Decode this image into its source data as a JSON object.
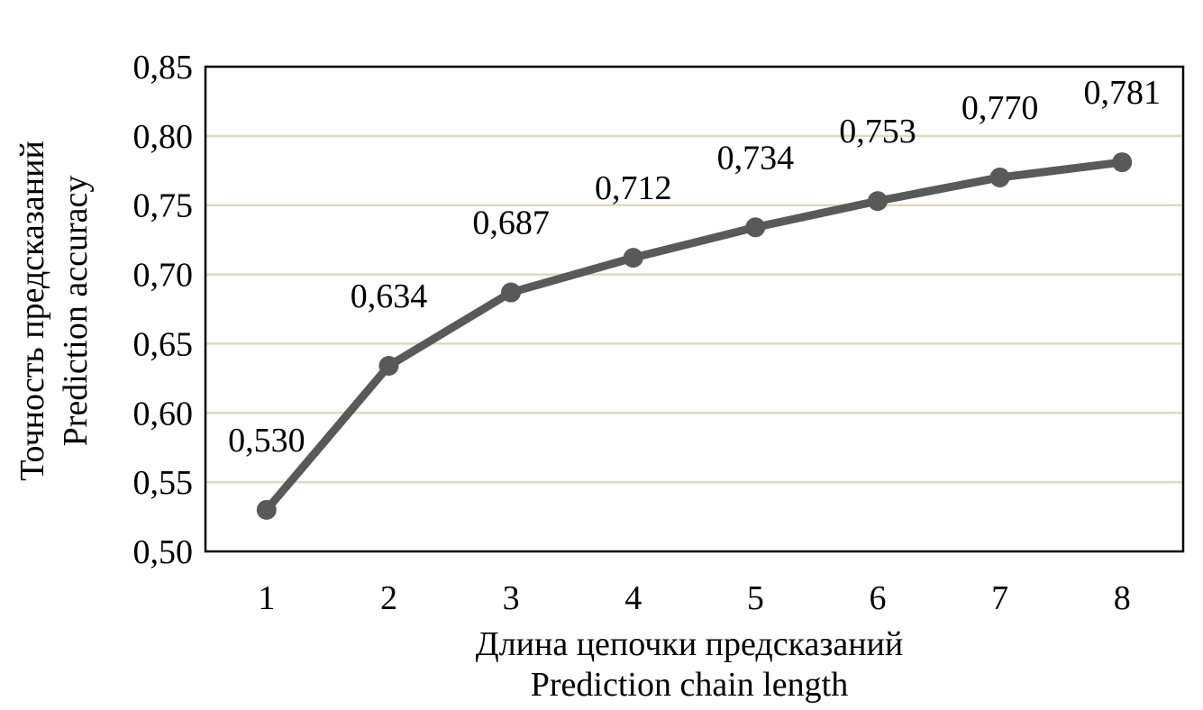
{
  "chart_data": {
    "type": "line",
    "x": [
      1,
      2,
      3,
      4,
      5,
      6,
      7,
      8
    ],
    "x_tick_labels": [
      "1",
      "2",
      "3",
      "4",
      "5",
      "6",
      "7",
      "8"
    ],
    "series": [
      {
        "values": [
          0.53,
          0.634,
          0.687,
          0.712,
          0.734,
          0.753,
          0.77,
          0.781
        ],
        "data_labels": [
          "0,530",
          "0,634",
          "0,687",
          "0,712",
          "0,734",
          "0,753",
          "0,770",
          "0,781"
        ],
        "color": "#595959",
        "marker": "circle"
      }
    ],
    "xlabel_lines": [
      "Длина цепочки предсказаний",
      "Prediction chain length"
    ],
    "ylabel_lines": [
      "Точность предсказаний",
      "Prediction accuracy"
    ],
    "ylim": [
      0.5,
      0.85
    ],
    "y_ticks": [
      0.5,
      0.55,
      0.6,
      0.65,
      0.7,
      0.75,
      0.8,
      0.85
    ],
    "y_tick_labels": [
      "0,50",
      "0,55",
      "0,60",
      "0,65",
      "0,70",
      "0,75",
      "0,80",
      "0,85"
    ],
    "grid": true,
    "grid_color": "#ddd9c3",
    "legend": "none"
  }
}
